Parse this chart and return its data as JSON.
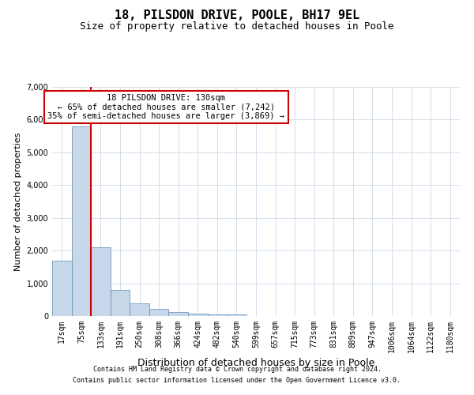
{
  "title": "18, PILSDON DRIVE, POOLE, BH17 9EL",
  "subtitle": "Size of property relative to detached houses in Poole",
  "xlabel": "Distribution of detached houses by size in Poole",
  "ylabel": "Number of detached properties",
  "bin_labels": [
    "17sqm",
    "75sqm",
    "133sqm",
    "191sqm",
    "250sqm",
    "308sqm",
    "366sqm",
    "424sqm",
    "482sqm",
    "540sqm",
    "599sqm",
    "657sqm",
    "715sqm",
    "773sqm",
    "831sqm",
    "889sqm",
    "947sqm",
    "1006sqm",
    "1064sqm",
    "1122sqm",
    "1180sqm"
  ],
  "bar_values": [
    1700,
    5800,
    2100,
    800,
    380,
    210,
    120,
    70,
    55,
    45,
    10,
    0,
    0,
    0,
    0,
    0,
    0,
    0,
    0,
    0,
    0
  ],
  "bar_color": "#c8d8ea",
  "bar_edge_color": "#5a8ab0",
  "vline_x_index": 2,
  "annotation_text": "18 PILSDON DRIVE: 130sqm\n← 65% of detached houses are smaller (7,242)\n35% of semi-detached houses are larger (3,869) →",
  "annotation_box_color": "#ffffff",
  "annotation_box_edge": "#cc0000",
  "vline_color": "#cc0000",
  "ylim": [
    0,
    7000
  ],
  "yticks": [
    0,
    1000,
    2000,
    3000,
    4000,
    5000,
    6000,
    7000
  ],
  "footer1": "Contains HM Land Registry data © Crown copyright and database right 2024.",
  "footer2": "Contains public sector information licensed under the Open Government Licence v3.0.",
  "bg_color": "#ffffff",
  "grid_color": "#ccd8e8",
  "title_fontsize": 11,
  "subtitle_fontsize": 9,
  "ylabel_fontsize": 8,
  "xlabel_fontsize": 9,
  "tick_fontsize": 7,
  "footer_fontsize": 6,
  "annot_fontsize": 7.5
}
